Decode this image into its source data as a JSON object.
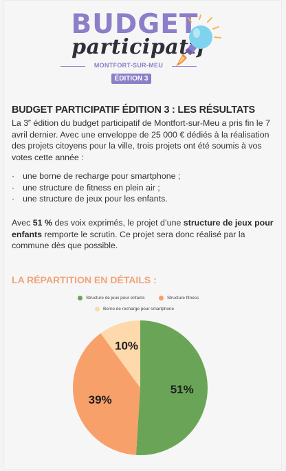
{
  "logo": {
    "word1": "BUDGET",
    "word2": "participatif",
    "city": "MONTFORT-SUR-MEU",
    "edition": "ÉDITION 3"
  },
  "article": {
    "title": "BUDGET PARTICIPATIF ÉDITION 3 : LES RÉSULTATS",
    "intro_a": "La 3",
    "intro_sup": "e",
    "intro_b": " édition du budget participatif de Montfort-sur-Meu a pris fin le 7 avril dernier. Avec une enveloppe de 25 000 € dédiés à la réalisation des projets citoyens pour la ville, trois projets ont été soumis à vos votes cette année :",
    "bullets": [
      "une borne de recharge pour smartphone ;",
      "une structure de fitness en plein air ;",
      "une structure de jeux pour les enfants."
    ],
    "bullet_symbol": "·",
    "result_a": "Avec ",
    "result_pct": "51 %",
    "result_b": " des voix exprimés, le projet d’une ",
    "result_project": "structure de jeux pour enfants",
    "result_c": " remporte le scrutin. Ce projet sera donc réalisé par la commune dès que possible.",
    "section_title": "LA RÉPARTITION EN DÉTAILS :"
  },
  "colors": {
    "purple": "#8d7ec9",
    "orange_title": "#f2a47a"
  },
  "chart_data": {
    "type": "pie",
    "title": "",
    "legend_position": "top",
    "series": [
      {
        "name": "Structure de jeux pour enfants",
        "value": 51,
        "label": "51%",
        "color": "#6aa557"
      },
      {
        "name": "Structure fitness",
        "value": 39,
        "label": "39%",
        "color": "#f7a06a"
      },
      {
        "name": "Borne de recharge pour smartphone",
        "value": 10,
        "label": "10%",
        "color": "#fdd9ab"
      }
    ]
  }
}
